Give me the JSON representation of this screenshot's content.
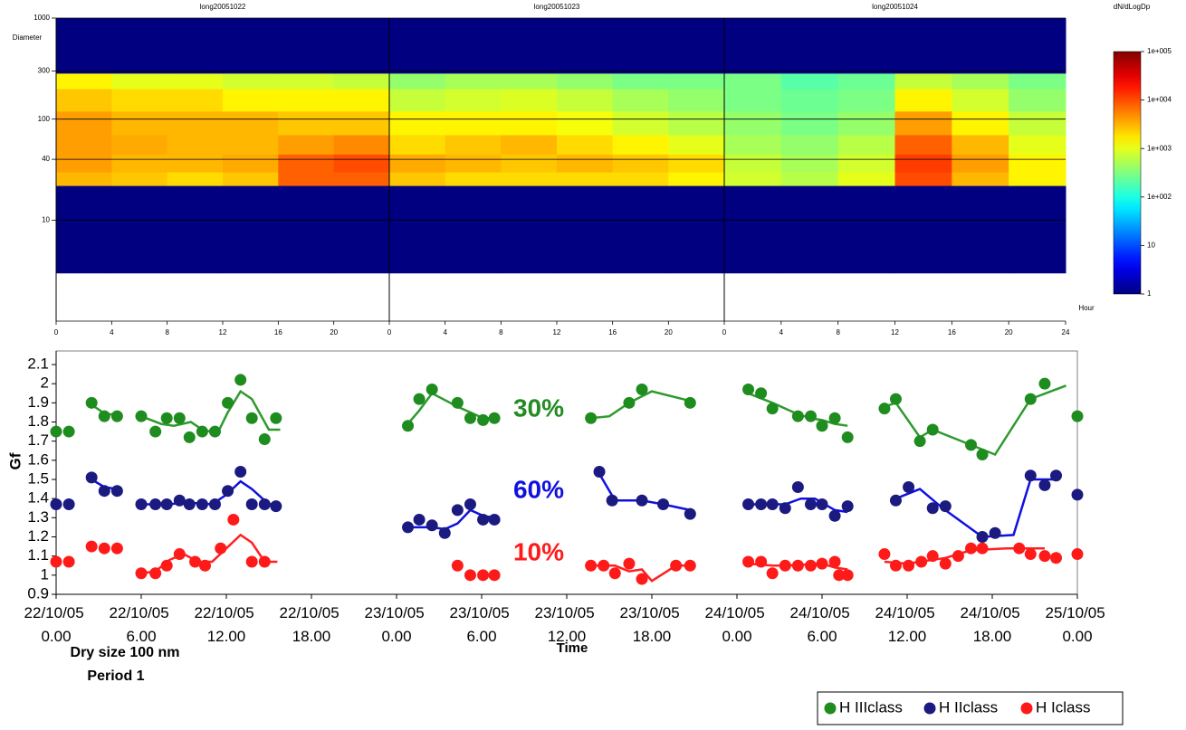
{
  "chart_data": [
    {
      "type": "heatmap",
      "ylabel": "Diameter",
      "xlabel": "Hour",
      "ylim": [
        1,
        1000
      ],
      "log_y": true,
      "yticks": [
        10,
        40,
        100,
        300,
        1000
      ],
      "xlim": [
        0,
        24
      ],
      "xticks": [
        0,
        4,
        8,
        12,
        16,
        20,
        24
      ],
      "xbins": [
        0,
        4,
        8,
        12,
        16,
        20,
        24
      ],
      "ybins": [
        3,
        22,
        30,
        45,
        70,
        120,
        200,
        285,
        1000
      ],
      "grid": true,
      "panels": [
        {
          "title": "long20051022",
          "z": [
            [
              1,
              1,
              1,
              1,
              1,
              1
            ],
            [
              3000,
              2500,
              2000,
              2500,
              8000,
              8000
            ],
            [
              4000,
              3000,
              3000,
              3500,
              8000,
              10000
            ],
            [
              4000,
              3500,
              3000,
              3000,
              4000,
              5000
            ],
            [
              4000,
              3000,
              3000,
              3000,
              2500,
              2500
            ],
            [
              2500,
              2000,
              2000,
              1500,
              1500,
              1500
            ],
            [
              1500,
              1000,
              1000,
              800,
              800,
              700
            ],
            [
              1,
              1,
              1,
              1,
              1,
              1
            ]
          ]
        },
        {
          "title": "long20051023",
          "z": [
            [
              1,
              1,
              1,
              1,
              1,
              1
            ],
            [
              2500,
              2000,
              2000,
              2000,
              2000,
              1500
            ],
            [
              3500,
              3000,
              2500,
              3000,
              2500,
              2000
            ],
            [
              2000,
              2500,
              3000,
              2000,
              1500,
              1000
            ],
            [
              1500,
              1500,
              1500,
              1200,
              800,
              600
            ],
            [
              700,
              800,
              900,
              700,
              500,
              400
            ],
            [
              400,
              500,
              500,
              400,
              300,
              300
            ],
            [
              1,
              1,
              1,
              1,
              1,
              1
            ]
          ]
        },
        {
          "title": "long20051024",
          "z": [
            [
              1,
              1,
              1,
              1,
              1,
              1
            ],
            [
              800,
              600,
              1000,
              10000,
              3000,
              1500
            ],
            [
              700,
              500,
              800,
              12000,
              4000,
              1500
            ],
            [
              500,
              400,
              600,
              8000,
              3000,
              1000
            ],
            [
              400,
              300,
              400,
              4000,
              1500,
              700
            ],
            [
              300,
              250,
              300,
              1500,
              800,
              400
            ],
            [
              300,
              200,
              250,
              700,
              500,
              300
            ],
            [
              1,
              1,
              1,
              1,
              1,
              1
            ]
          ]
        }
      ],
      "colorbar": {
        "label": "dN/dLogDp",
        "colormap": "jet",
        "log": true,
        "lim": [
          1,
          100000
        ],
        "ticks": [
          1,
          10,
          {
            "value": 100,
            "label": "1e+002"
          },
          {
            "value": 1000,
            "label": "1e+003"
          },
          {
            "value": 10000,
            "label": "1e+004"
          },
          {
            "value": 100000,
            "label": "1e+005"
          }
        ]
      }
    },
    {
      "type": "scatter",
      "ylabel": "Gf",
      "xlabel": "Time",
      "caption": [
        "Dry size 100 nm",
        "Period 1"
      ],
      "annotations": [
        {
          "text": "30%",
          "color": "#228b22"
        },
        {
          "text": "60%",
          "color": "#1010e0"
        },
        {
          "text": "10%",
          "color": "#ff1a1a"
        }
      ],
      "xlim": [
        0,
        72
      ],
      "xticks": [
        {
          "value": 0,
          "label": "22/10/05 0.00"
        },
        {
          "value": 6,
          "label": "22/10/05 6.00"
        },
        {
          "value": 12,
          "label": "22/10/05 12.00"
        },
        {
          "value": 18,
          "label": "22/10/05 18.00"
        },
        {
          "value": 24,
          "label": "23/10/05 0.00"
        },
        {
          "value": 30,
          "label": "23/10/05 6.00"
        },
        {
          "value": 36,
          "label": "23/10/05 12.00"
        },
        {
          "value": 42,
          "label": "23/10/05 18.00"
        },
        {
          "value": 48,
          "label": "24/10/05 0.00"
        },
        {
          "value": 54,
          "label": "24/10/05 6.00"
        },
        {
          "value": 60,
          "label": "24/10/05 12.00"
        },
        {
          "value": 66,
          "label": "24/10/05 18.00"
        },
        {
          "value": 72,
          "label": "25/10/05 0.00"
        }
      ],
      "ylim": [
        0.9,
        2.1
      ],
      "yticks": [
        0.9,
        1,
        1.1,
        1.2,
        1.3,
        1.4,
        1.5,
        1.6,
        1.7,
        1.8,
        1.9,
        2,
        2.1
      ],
      "legend": "bottom-right",
      "series": [
        {
          "name": "H IIIclass",
          "color": "#1e8c1e",
          "mode": "markers",
          "x": [
            0,
            0.9,
            2.5,
            3.4,
            4.3,
            6,
            7,
            7.8,
            8.7,
            9.4,
            10.3,
            11.2,
            12.1,
            13,
            13.8,
            14.7,
            15.5,
            24.8,
            25.6,
            26.5,
            28.3,
            29.2,
            30.1,
            30.9,
            37.7,
            40.4,
            41.3,
            44.7,
            48.8,
            49.7,
            50.5,
            52.3,
            53.2,
            54,
            54.9,
            55.8,
            58.4,
            59.2,
            60.9,
            61.8,
            64.5,
            65.3,
            68.7,
            69.7,
            72
          ],
          "values": [
            1.75,
            1.75,
            1.9,
            1.83,
            1.83,
            1.83,
            1.75,
            1.82,
            1.82,
            1.72,
            1.75,
            1.75,
            1.9,
            2.02,
            1.82,
            1.71,
            1.82,
            1.78,
            1.92,
            1.97,
            1.9,
            1.82,
            1.81,
            1.82,
            1.82,
            1.9,
            1.97,
            1.9,
            1.97,
            1.95,
            1.87,
            1.83,
            1.83,
            1.78,
            1.82,
            1.72,
            1.87,
            1.92,
            1.7,
            1.76,
            1.68,
            1.63,
            1.92,
            2.0,
            1.83
          ]
        },
        {
          "name": "H IIclass",
          "color": "#1a1a80",
          "mode": "markers",
          "x": [
            0,
            0.9,
            2.5,
            3.4,
            4.3,
            6,
            7,
            7.8,
            8.7,
            9.4,
            10.3,
            11.2,
            12.1,
            13,
            13.8,
            14.7,
            15.5,
            24.8,
            25.6,
            26.5,
            27.4,
            28.3,
            29.2,
            30.1,
            30.9,
            38.3,
            39.2,
            41.3,
            42.8,
            44.7,
            48.8,
            49.7,
            50.5,
            51.4,
            52.3,
            53.2,
            54,
            54.9,
            55.8,
            59.2,
            60.1,
            61.8,
            62.7,
            65.3,
            66.2,
            68.7,
            69.7,
            70.5,
            72
          ],
          "values": [
            1.37,
            1.37,
            1.51,
            1.44,
            1.44,
            1.37,
            1.37,
            1.37,
            1.39,
            1.37,
            1.37,
            1.37,
            1.44,
            1.54,
            1.37,
            1.37,
            1.36,
            1.25,
            1.29,
            1.26,
            1.22,
            1.34,
            1.37,
            1.29,
            1.29,
            1.54,
            1.39,
            1.39,
            1.37,
            1.32,
            1.37,
            1.37,
            1.37,
            1.35,
            1.46,
            1.37,
            1.37,
            1.31,
            1.36,
            1.39,
            1.46,
            1.35,
            1.36,
            1.2,
            1.22,
            1.52,
            1.47,
            1.52,
            1.42
          ]
        },
        {
          "name": "H Iclass",
          "color": "#ff1a1a",
          "mode": "markers",
          "x": [
            0,
            0.9,
            2.5,
            3.4,
            4.3,
            6,
            7,
            7.8,
            8.7,
            9.8,
            10.5,
            11.6,
            12.5,
            13.8,
            14.7,
            28.3,
            29.2,
            30.1,
            30.9,
            37.7,
            38.6,
            39.4,
            40.4,
            41.3,
            43.7,
            44.7,
            48.8,
            49.7,
            50.5,
            51.4,
            52.3,
            53.2,
            54,
            54.9,
            55.2,
            55.8,
            58.4,
            59.2,
            60.1,
            61,
            61.8,
            62.7,
            63.6,
            64.5,
            65.3,
            67.9,
            68.7,
            69.7,
            70.5,
            72
          ],
          "values": [
            1.07,
            1.07,
            1.15,
            1.14,
            1.14,
            1.01,
            1.01,
            1.05,
            1.11,
            1.07,
            1.05,
            1.14,
            1.29,
            1.07,
            1.07,
            1.05,
            1.0,
            1.0,
            1.0,
            1.05,
            1.05,
            1.01,
            1.06,
            0.98,
            1.05,
            1.05,
            1.07,
            1.07,
            1.01,
            1.05,
            1.05,
            1.05,
            1.06,
            1.07,
            1.0,
            1.0,
            1.11,
            1.05,
            1.05,
            1.07,
            1.1,
            1.06,
            1.1,
            1.14,
            1.14,
            1.14,
            1.11,
            1.1,
            1.09,
            1.11
          ]
        },
        {
          "color": "#2e9a2e",
          "mode": "line",
          "x": [
            2.5,
            3.5,
            4.3,
            null,
            6,
            7.4,
            8.3,
            9.5,
            10.5,
            11.5,
            12.1,
            13,
            13.8,
            15,
            15.8,
            null,
            24.8,
            25.6,
            26.5,
            28.3,
            29.2,
            30.1,
            30.9,
            null,
            37.7,
            39,
            40.4,
            42,
            44.7,
            null,
            48.8,
            50.5,
            52.3,
            53.2,
            54,
            54.9,
            55.8,
            null,
            58.4,
            59.2,
            60.9,
            61.8,
            64.5,
            66.2,
            68.7,
            71.2
          ],
          "values": [
            1.89,
            1.84,
            1.84,
            null,
            1.83,
            1.79,
            1.78,
            1.8,
            1.75,
            1.76,
            1.85,
            1.96,
            1.92,
            1.76,
            1.76,
            null,
            1.79,
            1.86,
            1.95,
            1.88,
            1.85,
            1.82,
            1.82,
            null,
            1.82,
            1.83,
            1.9,
            1.96,
            1.91,
            null,
            1.95,
            1.9,
            1.84,
            1.82,
            1.81,
            1.79,
            1.78,
            null,
            1.88,
            1.9,
            1.72,
            1.76,
            1.68,
            1.63,
            1.92,
            1.99
          ]
        },
        {
          "color": "#1010e0",
          "mode": "line",
          "x": [
            2.5,
            3.4,
            4.3,
            null,
            6,
            8,
            9,
            11,
            12,
            13,
            13.8,
            15,
            15.8,
            null,
            24.8,
            26.5,
            27.4,
            28.3,
            29.2,
            30.1,
            30.9,
            null,
            38.3,
            39.4,
            41.3,
            42.8,
            44.7,
            null,
            48.8,
            50.5,
            51.4,
            52.5,
            53.5,
            54.9,
            55.8,
            null,
            59.2,
            60.9,
            62.5,
            65.3,
            67.5,
            68.7,
            70.5
          ],
          "values": [
            1.5,
            1.46,
            1.45,
            null,
            1.37,
            1.37,
            1.38,
            1.37,
            1.42,
            1.49,
            1.45,
            1.37,
            1.37,
            null,
            1.25,
            1.25,
            1.24,
            1.27,
            1.34,
            1.31,
            1.3,
            null,
            1.53,
            1.39,
            1.39,
            1.37,
            1.34,
            null,
            1.37,
            1.37,
            1.37,
            1.4,
            1.4,
            1.34,
            1.33,
            null,
            1.4,
            1.45,
            1.35,
            1.2,
            1.21,
            1.5,
            1.5
          ]
        },
        {
          "color": "#ff2020",
          "mode": "line",
          "x": [
            6,
            7,
            8,
            9,
            10,
            11,
            12,
            13,
            13.8,
            14.7,
            15.6,
            null,
            37.7,
            39.4,
            40.4,
            41.3,
            42,
            43.7,
            44.7,
            null,
            48.8,
            50.5,
            51.4,
            54,
            54.9,
            55.8,
            null,
            58.4,
            60,
            62.7,
            64.5,
            67,
            69.7
          ],
          "values": [
            1.01,
            1.02,
            1.08,
            1.11,
            1.07,
            1.07,
            1.14,
            1.21,
            1.17,
            1.07,
            1.07,
            null,
            1.05,
            1.05,
            1.02,
            1.03,
            0.97,
            1.05,
            1.05,
            null,
            1.06,
            1.05,
            1.05,
            1.06,
            1.04,
            1.03,
            null,
            1.07,
            1.06,
            1.09,
            1.13,
            1.14,
            1.14
          ]
        }
      ]
    }
  ]
}
